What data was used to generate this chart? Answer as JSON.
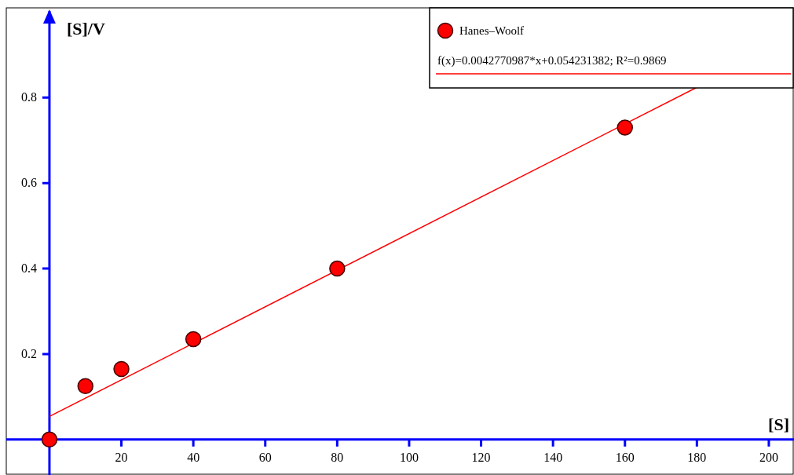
{
  "chart_data": {
    "type": "scatter",
    "xlabel": "[S]",
    "ylabel": "[S]/V",
    "xlim": [
      -12,
      207
    ],
    "ylim": [
      -0.083,
      1.01
    ],
    "xticks": [
      20,
      40,
      60,
      80,
      100,
      120,
      140,
      160,
      180,
      200
    ],
    "yticks": [
      0.2,
      0.4,
      0.6,
      0.8
    ],
    "legend": "top right",
    "marker": "circle",
    "series": [
      {
        "name": "Hanes–Woolf",
        "type": "scatter",
        "color": "#ff0000",
        "x": [
          0,
          10,
          20,
          40,
          80,
          160
        ],
        "values": [
          0,
          0.125,
          0.165,
          0.235,
          0.4,
          0.73
        ]
      },
      {
        "name": "f(x)=0.0042770987*x+0.054231382; R²=0.9869",
        "type": "line",
        "marker": "none",
        "color": "#ff0000",
        "line_style": "solid",
        "x": [
          0,
          180
        ],
        "values": [
          0.054,
          0.824
        ]
      }
    ]
  }
}
